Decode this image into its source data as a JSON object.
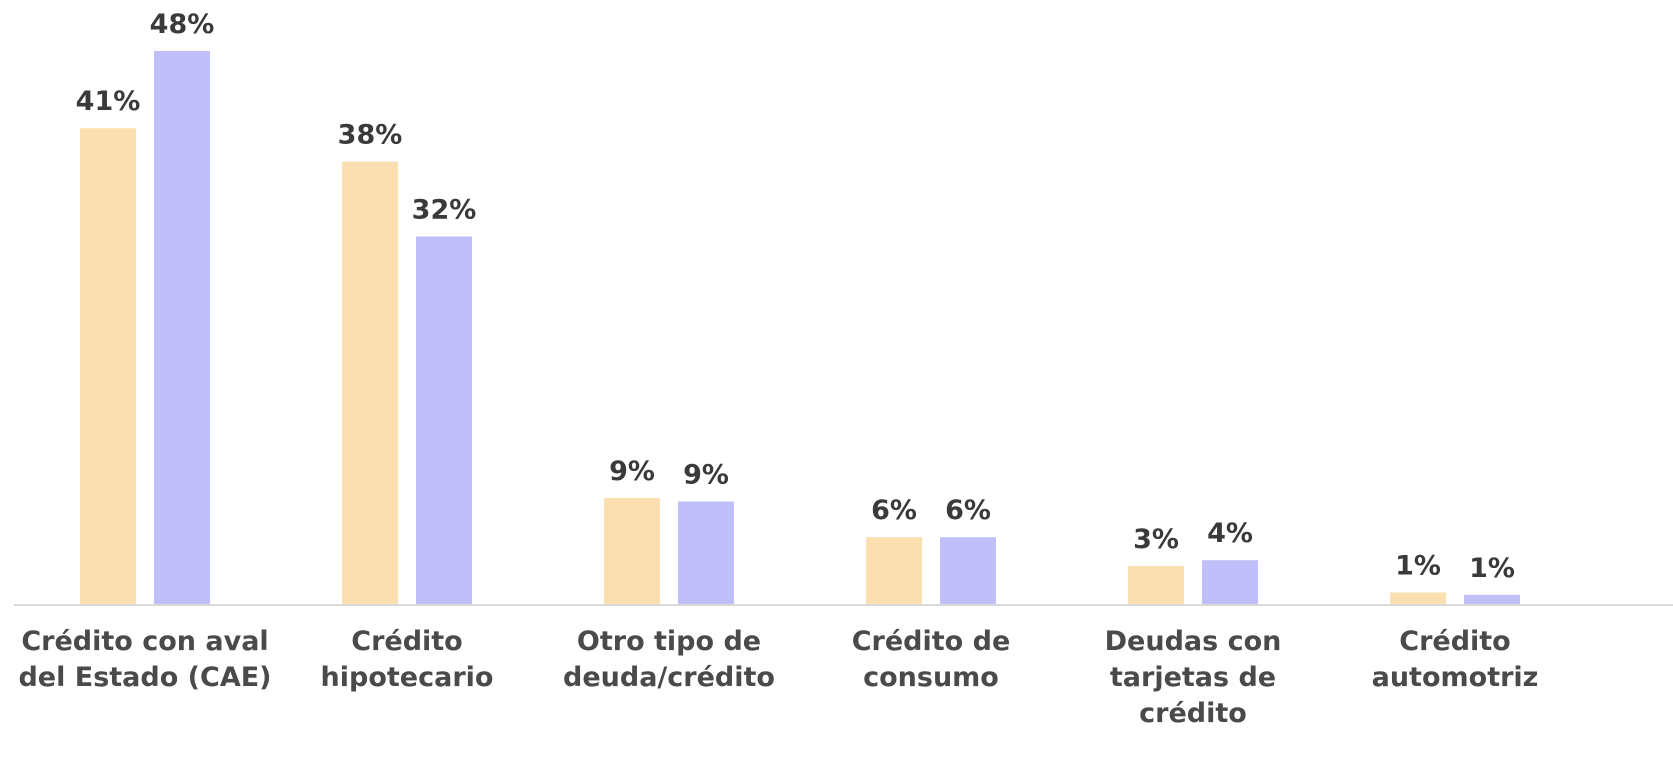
{
  "chart_data": {
    "type": "bar",
    "categories": [
      "Crédito con aval del Estado (CAE)",
      "Crédito hipotecario",
      "Otro tipo de deuda/crédito",
      "Crédito de consumo",
      "Deudas con tarjetas de crédito",
      "Crédito automotriz"
    ],
    "series": [
      {
        "color": "#fbdfb0",
        "values": [
          41.3,
          38.4,
          9.2,
          5.8,
          3.3,
          1.0
        ],
        "value_labels": [
          "41%",
          "38%",
          "9%",
          "6%",
          "3%",
          "1%"
        ]
      },
      {
        "color": "#c0bff9",
        "values": [
          48,
          31.9,
          8.9,
          5.8,
          3.8,
          0.8
        ],
        "value_labels": [
          "48%",
          "32%",
          "9%",
          "6%",
          "4%",
          "1%"
        ]
      }
    ]
  }
}
